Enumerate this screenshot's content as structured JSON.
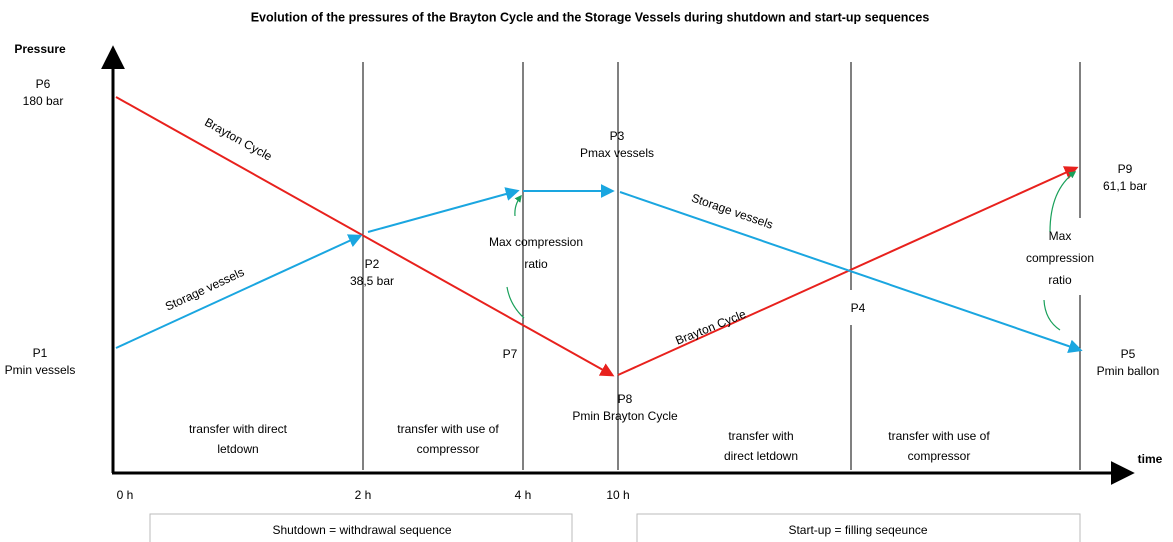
{
  "title": "Evolution of the pressures of the Brayton Cycle and the Storage Vessels during shutdown and start-up sequences",
  "axes": {
    "y": "Pressure",
    "x": "time"
  },
  "time_labels": [
    "0 h",
    "2 h",
    "4 h",
    "10 h"
  ],
  "points": [
    {
      "lines": [
        "P6",
        "180 bar"
      ]
    },
    {
      "lines": [
        "P1",
        "Pmin vessels"
      ]
    },
    {
      "lines": [
        "P2",
        "38,5 bar"
      ]
    },
    {
      "lines": [
        "P7"
      ]
    },
    {
      "lines": [
        "P3",
        "Pmax vessels"
      ]
    },
    {
      "lines": [
        "P8",
        "Pmin Brayton Cycle"
      ]
    },
    {
      "lines": [
        "P4"
      ]
    },
    {
      "lines": [
        "P9",
        "61,1 bar"
      ]
    },
    {
      "lines": [
        "P5",
        "Pmin ballon"
      ]
    }
  ],
  "curve_labels": [
    "Brayton Cycle",
    "Storage vessels",
    "Storage vessels",
    "Brayton Cycle"
  ],
  "annotations": [
    {
      "lines": [
        "Max compression",
        "ratio"
      ]
    },
    {
      "lines": [
        "Max",
        "compression",
        "ratio"
      ]
    }
  ],
  "phases": [
    {
      "lines": [
        "transfer with direct",
        "letdown"
      ]
    },
    {
      "lines": [
        "transfer with use  of",
        "compressor"
      ]
    },
    {
      "lines": [
        "transfer with",
        "direct letdown"
      ]
    },
    {
      "lines": [
        "transfer with use  of",
        "compressor"
      ]
    }
  ],
  "sequences": [
    "Shutdown = withdrawal sequence",
    "Start-up = filling seqeunce"
  ]
}
